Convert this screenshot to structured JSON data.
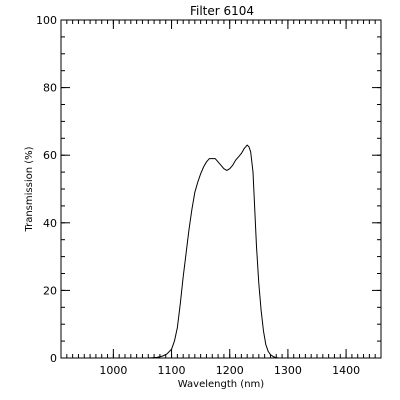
{
  "chart_data": {
    "type": "line",
    "title": "Filter 6104",
    "xlabel": "Wavelength (nm)",
    "ylabel": "Transmission (%)",
    "xlim": [
      910,
      1460
    ],
    "ylim": [
      0,
      100
    ],
    "xticks": [
      1000,
      1100,
      1200,
      1300,
      1400
    ],
    "yticks": [
      0,
      20,
      40,
      60,
      80,
      100
    ],
    "x_minor_step": 10,
    "y_minor_step": 5,
    "grid": false,
    "line_color": "#000000",
    "series": [
      {
        "x": [
          1060,
          1075,
          1085,
          1092,
          1100,
          1105,
          1110,
          1115,
          1120,
          1125,
          1130,
          1135,
          1140,
          1145,
          1150,
          1155,
          1160,
          1165,
          1170,
          1175,
          1180,
          1185,
          1190,
          1195,
          1200,
          1205,
          1210,
          1215,
          1220,
          1225,
          1230,
          1233,
          1236,
          1240,
          1243,
          1246,
          1250,
          1254,
          1258,
          1262,
          1266,
          1270,
          1275,
          1280,
          1285,
          1295
        ],
        "y": [
          0,
          0.2,
          0.6,
          1.2,
          2.6,
          5,
          9,
          16,
          24,
          31,
          38,
          44,
          49,
          52,
          54.5,
          56.5,
          58,
          59,
          59,
          59,
          58,
          57,
          56,
          55.5,
          56,
          57,
          58.5,
          59.5,
          60.5,
          62,
          63,
          62.5,
          61,
          55,
          44,
          33,
          22,
          14,
          8,
          4,
          2,
          1,
          0.4,
          0.1,
          0,
          0
        ]
      }
    ]
  }
}
